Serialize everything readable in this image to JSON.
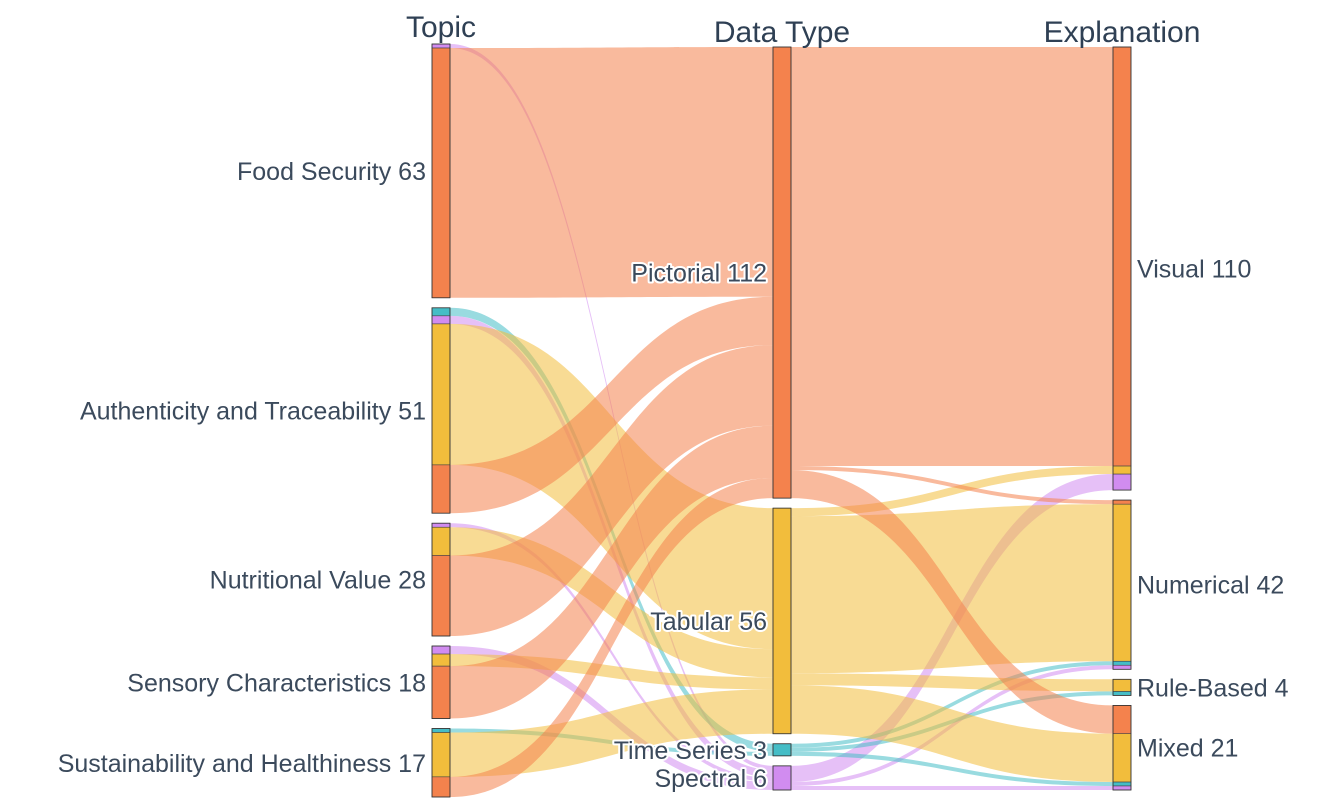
{
  "chart_data": {
    "type": "sankey",
    "columns": [
      "Topic",
      "Data Type",
      "Explanation"
    ],
    "colors": {
      "Pictorial": "#f4824d",
      "Tabular": "#f2bd3c",
      "Time Series": "#45bdc6",
      "Spectral": "#d18cf0"
    },
    "nodes": [
      {
        "name": "Food Security",
        "value": 63,
        "column": 0,
        "label": "Food Security 63"
      },
      {
        "name": "Authenticity and Traceability",
        "value": 51,
        "column": 0,
        "label": "Authenticity and Traceability 51"
      },
      {
        "name": "Nutritional Value",
        "value": 28,
        "column": 0,
        "label": "Nutritional Value 28"
      },
      {
        "name": "Sensory Characteristics",
        "value": 18,
        "column": 0,
        "label": "Sensory Characteristics 18"
      },
      {
        "name": "Sustainability and Healthiness",
        "value": 17,
        "column": 0,
        "label": "Sustainability and Healthiness 17"
      },
      {
        "name": "Pictorial",
        "value": 112,
        "column": 1,
        "label": "Pictorial 112"
      },
      {
        "name": "Tabular",
        "value": 56,
        "column": 1,
        "label": "Tabular 56"
      },
      {
        "name": "Time Series",
        "value": 3,
        "column": 1,
        "label": "Time Series 3"
      },
      {
        "name": "Spectral",
        "value": 6,
        "column": 1,
        "label": "Spectral 6"
      },
      {
        "name": "Visual",
        "value": 110,
        "column": 2,
        "label": "Visual 110"
      },
      {
        "name": "Numerical",
        "value": 42,
        "column": 2,
        "label": "Numerical 42"
      },
      {
        "name": "Rule-Based",
        "value": 4,
        "column": 2,
        "label": "Rule-Based 4"
      },
      {
        "name": "Mixed",
        "value": 21,
        "column": 2,
        "label": "Mixed 21"
      }
    ],
    "links": [
      {
        "source": "Food Security",
        "target": "Spectral",
        "value": 1
      },
      {
        "source": "Food Security",
        "target": "Pictorial",
        "value": 62
      },
      {
        "source": "Authenticity and Traceability",
        "target": "Time Series",
        "value": 2
      },
      {
        "source": "Authenticity and Traceability",
        "target": "Spectral",
        "value": 2
      },
      {
        "source": "Authenticity and Traceability",
        "target": "Tabular",
        "value": 35
      },
      {
        "source": "Authenticity and Traceability",
        "target": "Pictorial",
        "value": 12
      },
      {
        "source": "Nutritional Value",
        "target": "Spectral",
        "value": 1
      },
      {
        "source": "Nutritional Value",
        "target": "Tabular",
        "value": 7
      },
      {
        "source": "Nutritional Value",
        "target": "Pictorial",
        "value": 20
      },
      {
        "source": "Sensory Characteristics",
        "target": "Spectral",
        "value": 2
      },
      {
        "source": "Sensory Characteristics",
        "target": "Tabular",
        "value": 3
      },
      {
        "source": "Sensory Characteristics",
        "target": "Pictorial",
        "value": 13
      },
      {
        "source": "Sustainability and Healthiness",
        "target": "Time Series",
        "value": 1
      },
      {
        "source": "Sustainability and Healthiness",
        "target": "Tabular",
        "value": 11
      },
      {
        "source": "Sustainability and Healthiness",
        "target": "Pictorial",
        "value": 5
      },
      {
        "source": "Spectral",
        "target": "Visual",
        "value": 4
      },
      {
        "source": "Tabular",
        "target": "Visual",
        "value": 2
      },
      {
        "source": "Pictorial",
        "target": "Visual",
        "value": 104
      },
      {
        "source": "Time Series",
        "target": "Numerical",
        "value": 1
      },
      {
        "source": "Spectral",
        "target": "Numerical",
        "value": 1
      },
      {
        "source": "Tabular",
        "target": "Numerical",
        "value": 39
      },
      {
        "source": "Pictorial",
        "target": "Numerical",
        "value": 1
      },
      {
        "source": "Time Series",
        "target": "Rule-Based",
        "value": 1
      },
      {
        "source": "Tabular",
        "target": "Rule-Based",
        "value": 3
      },
      {
        "source": "Time Series",
        "target": "Mixed",
        "value": 1
      },
      {
        "source": "Spectral",
        "target": "Mixed",
        "value": 1
      },
      {
        "source": "Tabular",
        "target": "Mixed",
        "value": 12
      },
      {
        "source": "Pictorial",
        "target": "Mixed",
        "value": 7
      }
    ]
  }
}
